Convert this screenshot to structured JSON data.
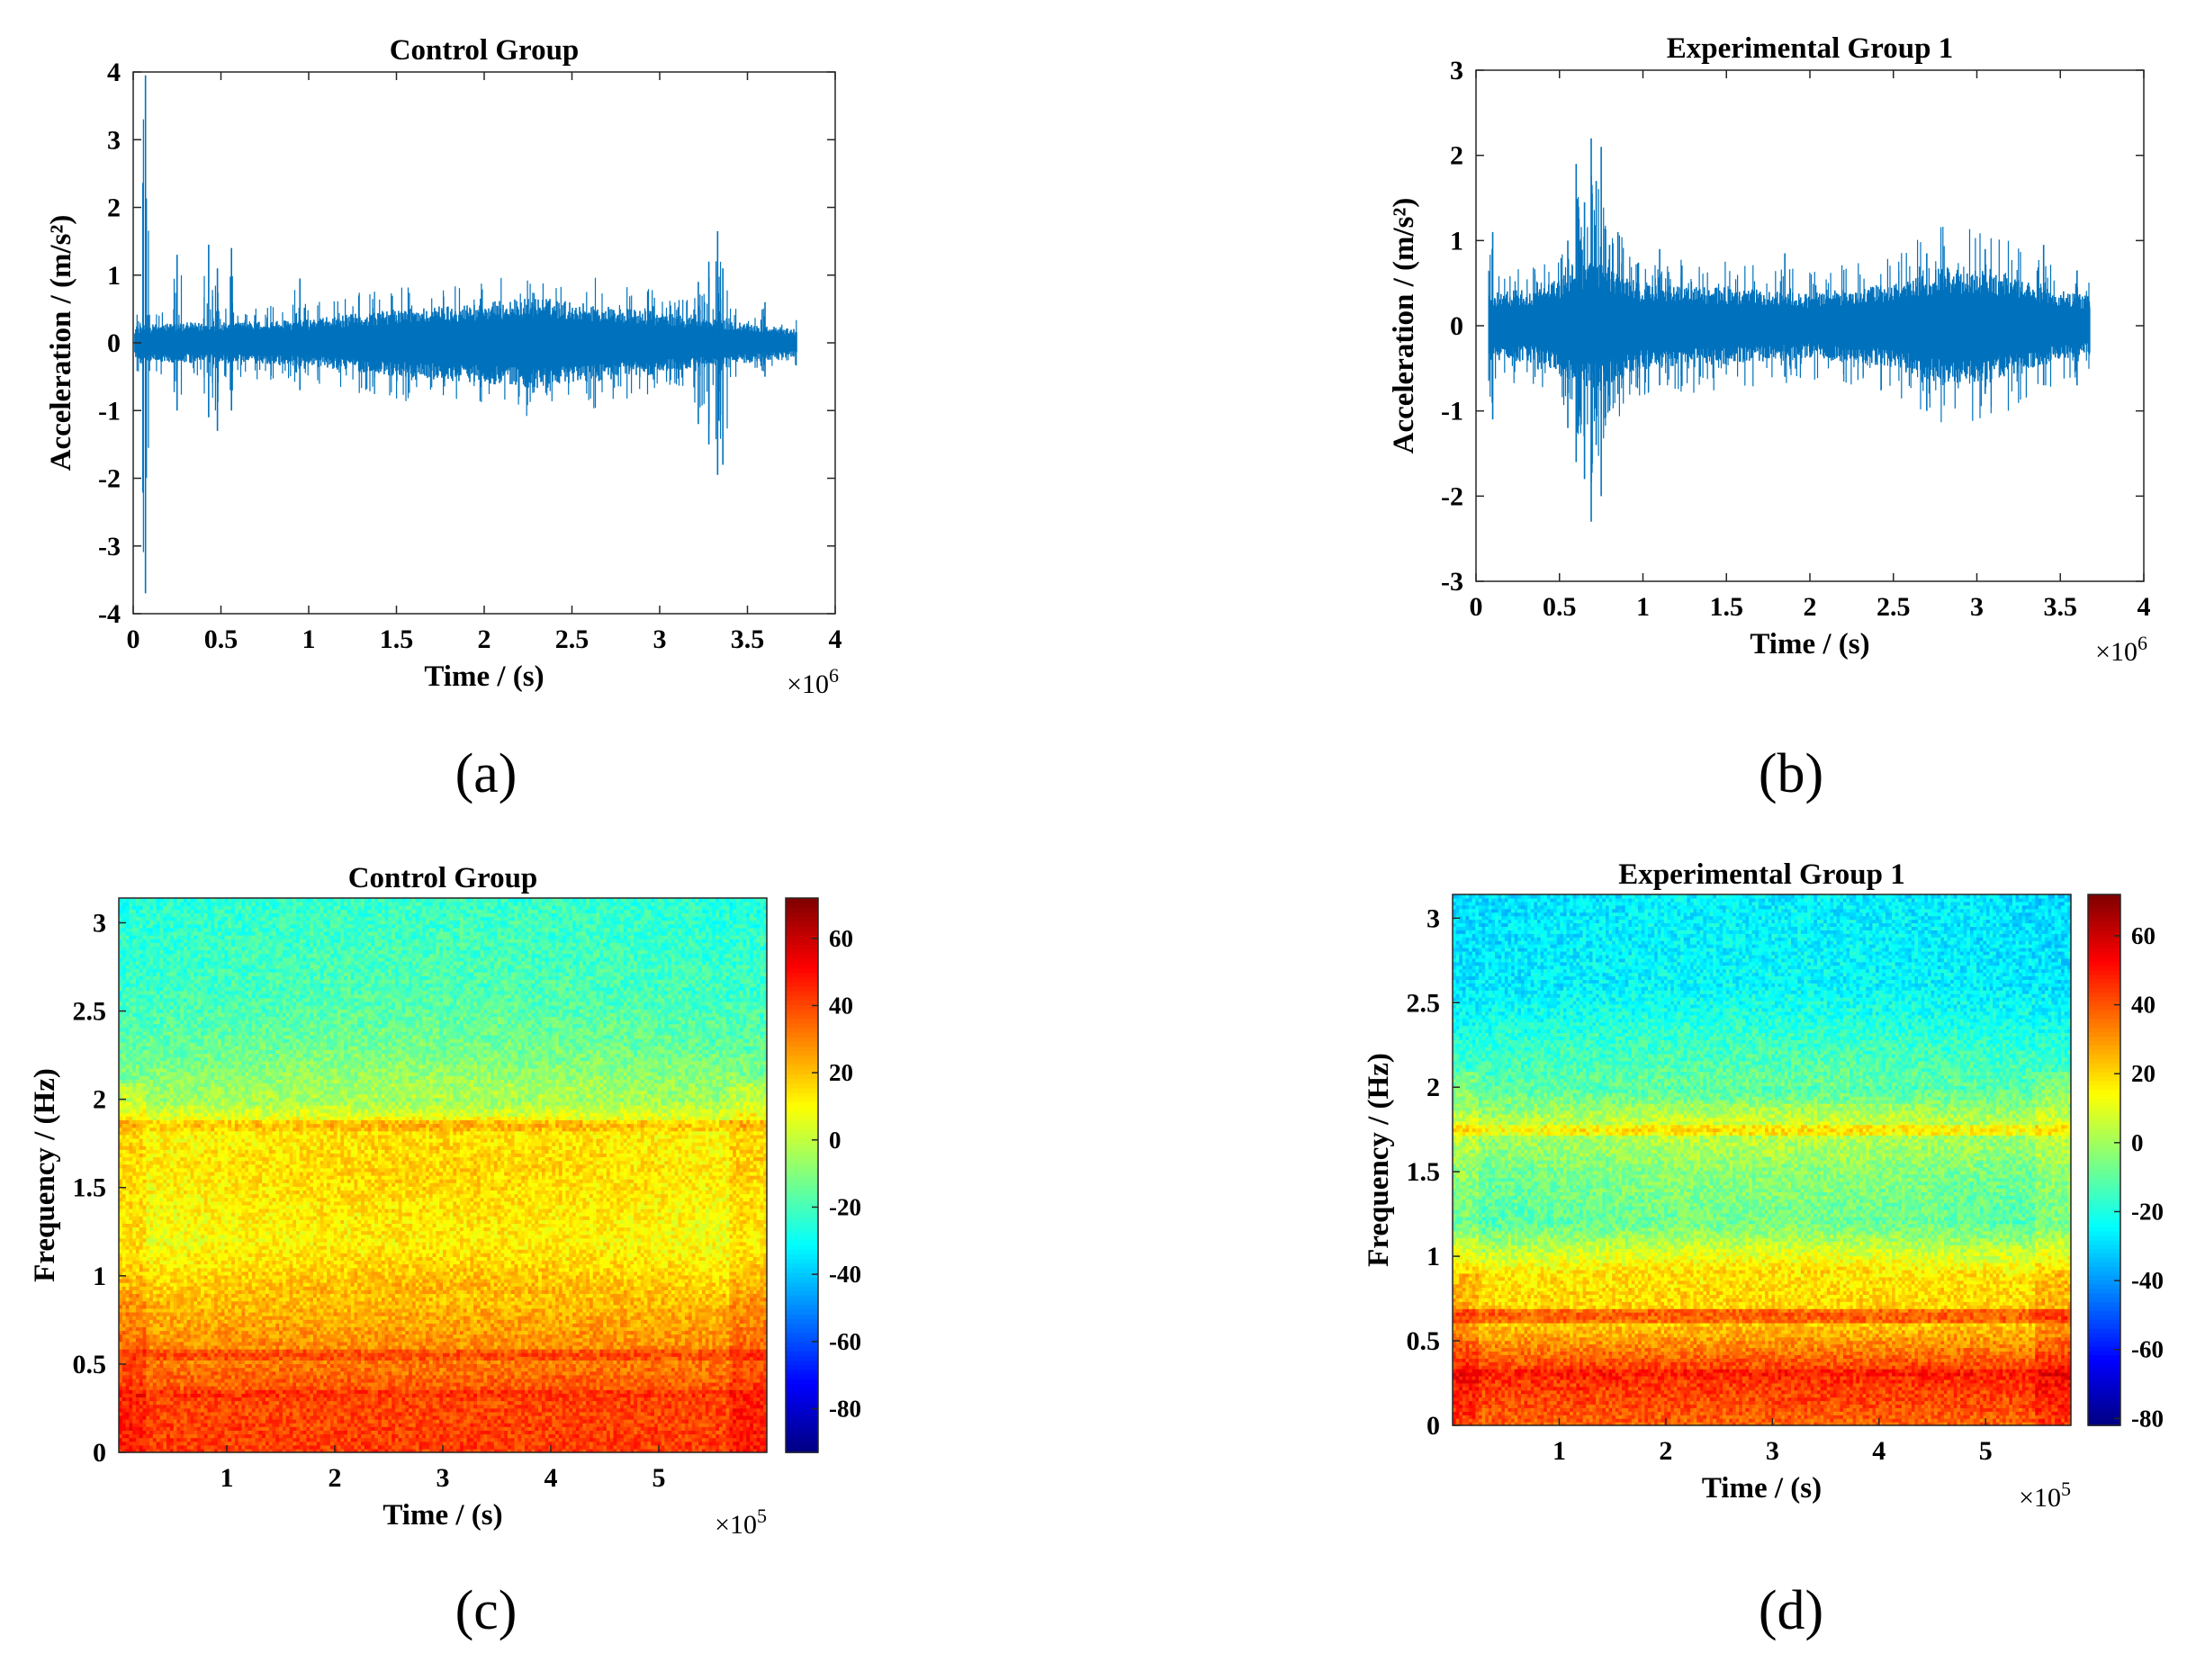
{
  "figure": {
    "panel_labels": [
      "(a)",
      "(b)",
      "(c)",
      "(d)"
    ]
  },
  "chart_data": [
    {
      "panel": "(a)",
      "type": "line",
      "title": "Control Group",
      "xlabel": "Time / (s)",
      "ylabel": "Acceleration / (m/s²)",
      "x_exponent": "×10^6",
      "xlim": [
        0,
        4
      ],
      "ylim": [
        -4,
        4
      ],
      "xticks": [
        0,
        0.5,
        1,
        1.5,
        2,
        2.5,
        3,
        3.5,
        4
      ],
      "yticks": [
        -4,
        -3,
        -2,
        -1,
        0,
        1,
        2,
        3,
        4
      ],
      "color": "#0072BD",
      "series": [
        {
          "name": "acceleration",
          "x_range": [
            0.01,
            3.78
          ],
          "envelope_x": [
            0.01,
            0.2,
            0.5,
            1.0,
            1.5,
            2.0,
            2.3,
            2.6,
            3.0,
            3.3,
            3.5,
            3.78
          ],
          "envelope_amp": [
            0.25,
            0.3,
            0.3,
            0.35,
            0.5,
            0.6,
            0.68,
            0.58,
            0.45,
            0.35,
            0.3,
            0.2
          ],
          "spikes": [
            {
              "x": 0.07,
              "max": 3.95,
              "min": -3.7
            },
            {
              "x": 0.25,
              "max": 1.3,
              "min": -1.0
            },
            {
              "x": 0.43,
              "max": 1.45,
              "min": -1.1
            },
            {
              "x": 0.48,
              "max": 1.1,
              "min": -1.3
            },
            {
              "x": 0.56,
              "max": 1.4,
              "min": -1.0
            },
            {
              "x": 0.95,
              "max": 0.95,
              "min": -0.7
            },
            {
              "x": 3.22,
              "max": 0.9,
              "min": -1.2
            },
            {
              "x": 3.28,
              "max": 1.2,
              "min": -1.5
            },
            {
              "x": 3.33,
              "max": 1.65,
              "min": -1.95
            },
            {
              "x": 3.36,
              "max": 1.1,
              "min": -1.8
            },
            {
              "x": 3.6,
              "max": 0.6,
              "min": -0.5
            }
          ]
        }
      ]
    },
    {
      "panel": "(b)",
      "type": "line",
      "title": "Experimental Group 1",
      "xlabel": "Time / (s)",
      "ylabel": "Acceleration / (m/s²)",
      "x_exponent": "×10^6",
      "xlim": [
        0,
        4
      ],
      "ylim": [
        -3,
        3
      ],
      "xticks": [
        0,
        0.5,
        1,
        1.5,
        2,
        2.5,
        3,
        3.5,
        4
      ],
      "yticks": [
        -3,
        -2,
        -1,
        0,
        1,
        2,
        3
      ],
      "color": "#0072BD",
      "series": [
        {
          "name": "acceleration",
          "x_range": [
            0.08,
            3.68
          ],
          "envelope_x": [
            0.08,
            0.4,
            0.7,
            1.0,
            1.5,
            2.0,
            2.5,
            2.8,
            3.1,
            3.4,
            3.68
          ],
          "envelope_amp": [
            0.4,
            0.45,
            0.8,
            0.5,
            0.45,
            0.38,
            0.5,
            0.7,
            0.65,
            0.45,
            0.35
          ],
          "spikes": [
            {
              "x": 0.1,
              "max": 1.1,
              "min": -1.1
            },
            {
              "x": 0.55,
              "max": 1.0,
              "min": -1.2
            },
            {
              "x": 0.6,
              "max": 1.9,
              "min": -1.6
            },
            {
              "x": 0.65,
              "max": 1.45,
              "min": -1.8
            },
            {
              "x": 0.69,
              "max": 2.2,
              "min": -2.3
            },
            {
              "x": 0.72,
              "max": 1.7,
              "min": -1.4
            },
            {
              "x": 0.75,
              "max": 2.1,
              "min": -2.0
            },
            {
              "x": 0.8,
              "max": 0.95,
              "min": -1.0
            },
            {
              "x": 0.85,
              "max": 1.1,
              "min": -0.8
            },
            {
              "x": 1.1,
              "max": 0.9,
              "min": -0.7
            },
            {
              "x": 1.85,
              "max": 0.85,
              "min": -0.6
            },
            {
              "x": 2.7,
              "max": 0.85,
              "min": -1.0
            },
            {
              "x": 3.05,
              "max": 0.9,
              "min": -0.8
            },
            {
              "x": 3.4,
              "max": 0.95,
              "min": -0.7
            },
            {
              "x": 3.6,
              "max": 0.65,
              "min": -0.7
            }
          ]
        }
      ]
    },
    {
      "panel": "(c)",
      "type": "heatmap",
      "title": "Control Group",
      "xlabel": "Time / (s)",
      "ylabel": "Frequency / (Hz)",
      "x_exponent": "×10^5",
      "xlim": [
        0,
        6
      ],
      "ylim": [
        0,
        3.14
      ],
      "xticks": [
        1,
        2,
        3,
        4,
        5
      ],
      "yticks": [
        0,
        0.5,
        1,
        1.5,
        2,
        2.5,
        3
      ],
      "colorbar": {
        "range": [
          -93,
          72
        ],
        "ticks": [
          60,
          40,
          20,
          0,
          -20,
          -40,
          -60,
          -80
        ],
        "colormap": "jet"
      },
      "power_profile": {
        "freq": [
          0,
          0.3,
          0.55,
          0.9,
          1.2,
          1.6,
          1.85,
          2.0,
          2.3,
          2.6,
          3.14
        ],
        "db": [
          42,
          40,
          30,
          20,
          10,
          14,
          12,
          -6,
          -16,
          -22,
          -26
        ]
      },
      "lines": [
        {
          "freq": 0.55,
          "db": 40
        },
        {
          "freq": 0.33,
          "db": 44
        },
        {
          "freq": 1.85,
          "db": 20
        }
      ]
    },
    {
      "panel": "(d)",
      "type": "heatmap",
      "title": "Experimental Group 1",
      "xlabel": "Time / (s)",
      "ylabel": "Frequency / (Hz)",
      "x_exponent": "×10^5",
      "xlim": [
        0,
        5.8
      ],
      "ylim": [
        0,
        3.14
      ],
      "xticks": [
        1,
        2,
        3,
        4,
        5
      ],
      "yticks": [
        0,
        0.5,
        1,
        1.5,
        2,
        2.5,
        3
      ],
      "colorbar": {
        "range": [
          -82,
          72
        ],
        "ticks": [
          60,
          40,
          20,
          0,
          -20,
          -40,
          -60,
          -80
        ],
        "colormap": "jet"
      },
      "power_profile": {
        "freq": [
          0,
          0.3,
          0.6,
          0.9,
          1.2,
          1.5,
          1.8,
          2.0,
          2.3,
          2.6,
          3.14
        ],
        "db": [
          38,
          46,
          22,
          18,
          -10,
          -6,
          4,
          -12,
          -20,
          -28,
          -30
        ]
      },
      "lines": [
        {
          "freq": 0.31,
          "db": 50
        },
        {
          "freq": 0.65,
          "db": 40
        },
        {
          "freq": 1.75,
          "db": 16
        }
      ]
    }
  ]
}
